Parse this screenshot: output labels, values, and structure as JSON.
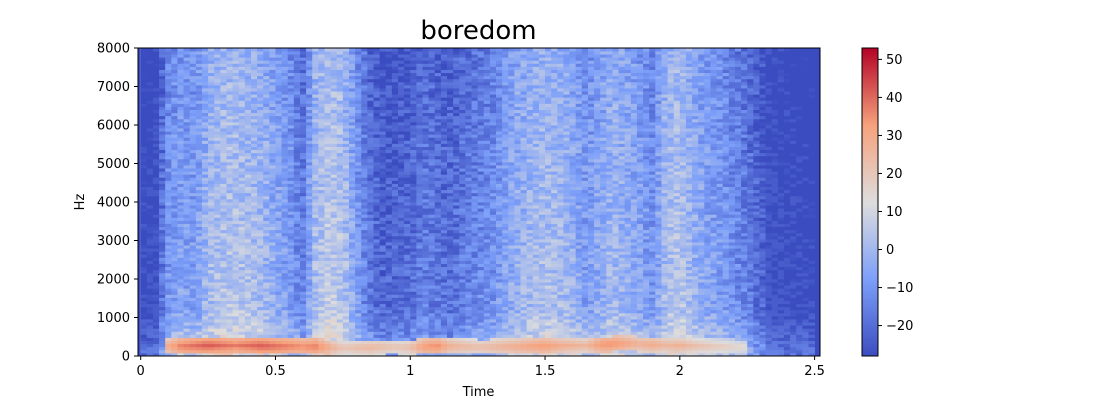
{
  "chart_data": {
    "type": "heatmap",
    "subtype": "spectrogram",
    "title": "boredom",
    "xlabel": "Time",
    "ylabel": "Hz",
    "xlim": [
      -0.01,
      2.52
    ],
    "ylim": [
      0,
      8000
    ],
    "x_ticks": [
      0,
      0.5,
      1,
      1.5,
      2,
      2.5
    ],
    "x_tick_labels": [
      "0",
      "0.5",
      "1",
      "1.5",
      "2",
      "2.5"
    ],
    "y_ticks": [
      0,
      1000,
      2000,
      3000,
      4000,
      5000,
      6000,
      7000,
      8000
    ],
    "y_tick_labels": [
      "0",
      "1000",
      "2000",
      "3000",
      "4000",
      "5000",
      "6000",
      "7000",
      "8000"
    ],
    "grid": false,
    "colormap": "coolwarm",
    "colorbar": {
      "range": [
        -28,
        53
      ],
      "ticks": [
        -20,
        -10,
        0,
        10,
        20,
        30,
        40,
        50
      ],
      "tick_labels": [
        "−20",
        "−10",
        "0",
        "10",
        "20",
        "30",
        "40",
        "50"
      ]
    },
    "energy_profile": {
      "time": [
        0.0,
        0.05,
        0.1,
        0.15,
        0.2,
        0.25,
        0.3,
        0.35,
        0.4,
        0.45,
        0.5,
        0.55,
        0.6,
        0.65,
        0.7,
        0.75,
        0.8,
        0.85,
        0.9,
        0.95,
        1.0,
        1.05,
        1.1,
        1.15,
        1.2,
        1.25,
        1.3,
        1.35,
        1.4,
        1.45,
        1.5,
        1.55,
        1.6,
        1.65,
        1.7,
        1.75,
        1.8,
        1.85,
        1.9,
        1.95,
        2.0,
        2.05,
        2.1,
        2.15,
        2.2,
        2.25,
        2.3,
        2.35,
        2.4,
        2.45,
        2.5
      ],
      "level_db": [
        -28,
        -27,
        -8,
        -4,
        -6,
        2,
        5,
        6,
        4,
        2,
        -2,
        -6,
        -14,
        4,
        8,
        6,
        -6,
        -16,
        -20,
        -20,
        -18,
        -14,
        -16,
        -18,
        -14,
        -12,
        -10,
        -4,
        0,
        2,
        4,
        3,
        0,
        -6,
        -2,
        2,
        0,
        -4,
        -8,
        4,
        6,
        0,
        -4,
        -6,
        -10,
        -14,
        -20,
        -24,
        -26,
        -27,
        -28
      ]
    },
    "harmonic_band": {
      "time": [
        0.1,
        0.15,
        0.2,
        0.25,
        0.3,
        0.35,
        0.4,
        0.45,
        0.5,
        0.55,
        0.6,
        0.65,
        0.7,
        0.75,
        0.8,
        0.85,
        0.9,
        0.95,
        1.0,
        1.05,
        1.1,
        1.15,
        1.2,
        1.25,
        1.3,
        1.35,
        1.4,
        1.45,
        1.5,
        1.55,
        1.6,
        1.65,
        1.7,
        1.75,
        1.8,
        1.85,
        1.9,
        1.95,
        2.0,
        2.05,
        2.1,
        2.15,
        2.2,
        2.25
      ],
      "freq_hz": [
        260,
        260,
        270,
        280,
        280,
        280,
        280,
        270,
        260,
        260,
        250,
        250,
        230,
        220,
        220,
        230,
        240,
        240,
        230,
        250,
        260,
        260,
        250,
        240,
        240,
        250,
        250,
        260,
        270,
        270,
        280,
        280,
        300,
        320,
        330,
        320,
        300,
        290,
        280,
        270,
        260,
        250,
        240,
        230
      ],
      "level_db": [
        30,
        38,
        40,
        42,
        40,
        38,
        40,
        42,
        40,
        38,
        36,
        38,
        30,
        22,
        24,
        26,
        24,
        22,
        24,
        34,
        36,
        28,
        26,
        24,
        26,
        28,
        30,
        32,
        34,
        30,
        28,
        26,
        34,
        36,
        32,
        28,
        30,
        26,
        28,
        24,
        22,
        20,
        18,
        16
      ]
    }
  }
}
